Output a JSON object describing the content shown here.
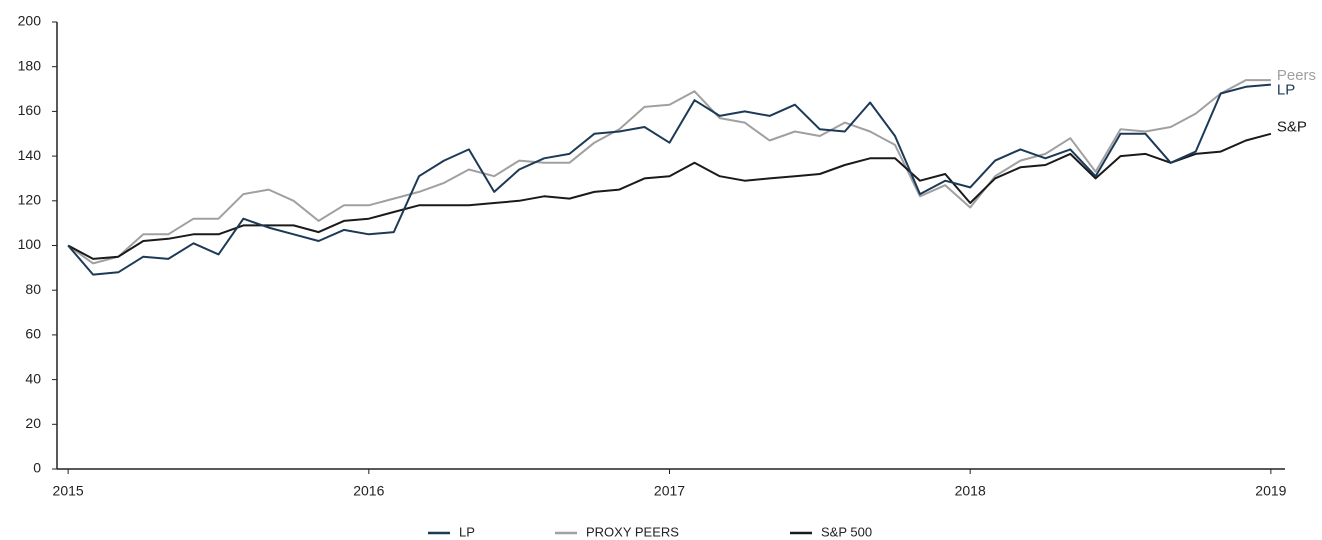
{
  "chart_data": {
    "type": "line",
    "x": [
      2015,
      2015.083,
      2015.167,
      2015.25,
      2015.333,
      2015.417,
      2015.5,
      2015.583,
      2015.667,
      2015.75,
      2015.833,
      2015.917,
      2016,
      2016.083,
      2016.167,
      2016.25,
      2016.333,
      2016.417,
      2016.5,
      2016.583,
      2016.667,
      2016.75,
      2016.833,
      2016.917,
      2017,
      2017.083,
      2017.167,
      2017.25,
      2017.333,
      2017.417,
      2017.5,
      2017.583,
      2017.667,
      2017.75,
      2017.833,
      2017.917,
      2018,
      2018.083,
      2018.167,
      2018.25,
      2018.333,
      2018.417,
      2018.5,
      2018.583,
      2018.667,
      2018.75,
      2018.833,
      2018.917,
      2019
    ],
    "series": [
      {
        "name": "LP",
        "color": "#1c3a57",
        "end_label": "LP",
        "values": [
          100,
          87,
          88,
          95,
          94,
          101,
          96,
          112,
          108,
          105,
          102,
          107,
          105,
          106,
          131,
          138,
          143,
          124,
          134,
          139,
          141,
          150,
          151,
          153,
          146,
          165,
          158,
          160,
          158,
          163,
          152,
          151,
          164,
          149,
          123,
          129,
          126,
          138,
          143,
          139,
          143,
          131,
          150,
          150,
          137,
          142,
          168,
          171,
          172
        ]
      },
      {
        "name": "PROXY PEERS",
        "color": "#a0a0a0",
        "end_label": "Peers",
        "values": [
          100,
          92,
          95,
          105,
          105,
          112,
          112,
          123,
          125,
          120,
          111,
          118,
          118,
          121,
          124,
          128,
          134,
          131,
          138,
          137,
          137,
          146,
          152,
          162,
          163,
          169,
          157,
          155,
          147,
          151,
          149,
          155,
          151,
          145,
          122,
          127,
          117,
          131,
          138,
          141,
          148,
          133,
          152,
          151,
          153,
          159,
          168,
          174,
          174
        ]
      },
      {
        "name": "S&P 500",
        "color": "#1a1a1a",
        "end_label": "S&P",
        "values": [
          100,
          94,
          95,
          102,
          103,
          105,
          105,
          109,
          109,
          109,
          106,
          111,
          112,
          115,
          118,
          118,
          118,
          119,
          120,
          122,
          121,
          124,
          125,
          130,
          131,
          137,
          131,
          129,
          130,
          131,
          132,
          136,
          139,
          139,
          129,
          132,
          119,
          130,
          135,
          136,
          141,
          130,
          140,
          141,
          137,
          141,
          142,
          147,
          150
        ]
      }
    ],
    "xlim": [
      2014.963,
      2019.047
    ],
    "xticks": [
      2015,
      2016,
      2017,
      2018,
      2019
    ],
    "ylim": [
      0,
      200
    ],
    "yticks": [
      0,
      20,
      40,
      60,
      80,
      100,
      120,
      140,
      160,
      180,
      200
    ],
    "grid": false,
    "legend": "bottom"
  }
}
